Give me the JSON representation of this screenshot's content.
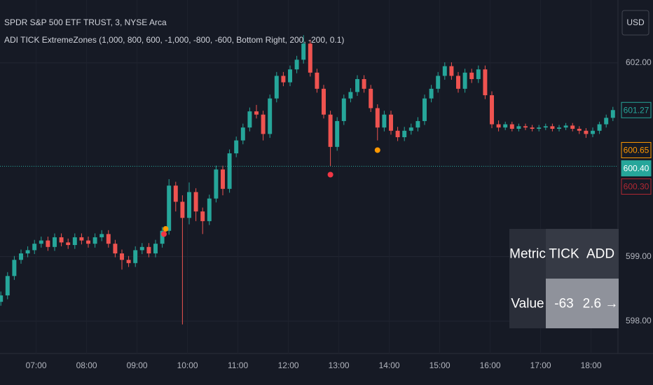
{
  "chart_data": {
    "type": "candlestick",
    "title": "SPDR S&P 500 ETF TRUST, 3, NYSE Arca",
    "indicator": "ADI TICK ExtremeZones (1,000, 800, 600, -1,000, -800, -600, Bottom Right, 200, -200, 0.1)",
    "currency": "USD",
    "up_color": "#26a69a",
    "down_color": "#ef5350",
    "grid": true,
    "xlim": [
      377,
      1112
    ],
    "ylim": [
      597.5,
      602.975
    ],
    "xticks": [
      {
        "value": 420,
        "label": "07:00"
      },
      {
        "value": 480,
        "label": "08:00"
      },
      {
        "value": 540,
        "label": "09:00"
      },
      {
        "value": 600,
        "label": "10:00"
      },
      {
        "value": 660,
        "label": "11:00"
      },
      {
        "value": 720,
        "label": "12:00"
      },
      {
        "value": 780,
        "label": "13:00"
      },
      {
        "value": 840,
        "label": "14:00"
      },
      {
        "value": 900,
        "label": "15:00"
      },
      {
        "value": 960,
        "label": "16:00"
      },
      {
        "value": 1020,
        "label": "17:00"
      },
      {
        "value": 1080,
        "label": "18:00"
      }
    ],
    "yticks": [
      {
        "value": 598,
        "label": "598.00"
      },
      {
        "value": 599,
        "label": "599.00"
      },
      {
        "value": 602,
        "label": "602.00"
      }
    ],
    "x": [
      378,
      386,
      394,
      402,
      410,
      418,
      426,
      434,
      442,
      450,
      458,
      466,
      474,
      482,
      490,
      498,
      506,
      514,
      522,
      530,
      538,
      546,
      554,
      562,
      570,
      578,
      586,
      594,
      602,
      610,
      618,
      626,
      634,
      642,
      650,
      658,
      666,
      674,
      682,
      690,
      698,
      706,
      714,
      722,
      730,
      738,
      746,
      754,
      762,
      770,
      778,
      786,
      794,
      802,
      810,
      818,
      826,
      834,
      842,
      850,
      858,
      866,
      874,
      882,
      890,
      898,
      906,
      914,
      922,
      930,
      938,
      946,
      954,
      962,
      970,
      978,
      986,
      994,
      1002,
      1010,
      1018,
      1026,
      1034,
      1042,
      1050,
      1058,
      1066,
      1074,
      1082,
      1090,
      1098,
      1106
    ],
    "open": [
      598.3,
      598.4,
      598.7,
      598.95,
      599.05,
      599.1,
      599.2,
      599.25,
      599.15,
      599.3,
      599.22,
      599.18,
      599.3,
      599.25,
      599.2,
      599.3,
      599.35,
      599.2,
      599.05,
      598.95,
      598.9,
      599.1,
      599.15,
      599.05,
      599.2,
      599.4,
      600.1,
      599.85,
      599.6,
      600.0,
      599.7,
      599.55,
      599.9,
      600.35,
      600.05,
      600.6,
      600.8,
      601.0,
      601.25,
      601.2,
      600.9,
      601.45,
      601.8,
      601.7,
      601.9,
      602.05,
      602.3,
      601.85,
      601.6,
      601.2,
      600.7,
      601.1,
      601.45,
      601.55,
      601.75,
      601.6,
      601.3,
      601.0,
      601.2,
      600.95,
      600.85,
      600.95,
      601.0,
      601.1,
      601.45,
      601.6,
      601.8,
      601.95,
      601.8,
      601.6,
      601.85,
      601.75,
      601.9,
      601.5,
      601.05,
      601.0,
      601.05,
      600.98,
      601.02,
      601.0,
      600.98,
      601.0,
      601.02,
      600.98,
      601.0,
      601.03,
      600.98,
      600.95,
      600.9,
      600.95,
      601.05,
      601.15
    ],
    "high": [
      598.46,
      598.76,
      599.01,
      599.11,
      599.16,
      599.26,
      599.31,
      599.31,
      599.36,
      599.36,
      599.28,
      599.36,
      599.36,
      599.31,
      599.36,
      599.41,
      599.41,
      599.26,
      599.11,
      599.01,
      599.16,
      599.21,
      599.21,
      599.26,
      599.46,
      600.2,
      600.16,
      599.95,
      600.15,
      600.06,
      599.76,
      599.96,
      600.41,
      600.41,
      600.66,
      600.86,
      601.06,
      601.31,
      601.35,
      601.26,
      601.51,
      601.86,
      601.86,
      601.96,
      602.11,
      602.43,
      602.36,
      601.91,
      601.66,
      601.26,
      601.16,
      601.51,
      601.61,
      601.81,
      601.81,
      601.66,
      601.36,
      601.26,
      601.26,
      601.01,
      601.01,
      601.06,
      601.16,
      601.51,
      601.66,
      601.86,
      602.01,
      602.01,
      601.86,
      601.91,
      601.91,
      601.96,
      601.96,
      601.56,
      601.11,
      601.09,
      601.09,
      601.06,
      601.06,
      601.04,
      601.04,
      601.06,
      601.06,
      601.04,
      601.07,
      601.07,
      601.02,
      600.99,
      601.0,
      601.09,
      601.2,
      601.32
    ],
    "low": [
      598.24,
      598.34,
      598.64,
      598.89,
      598.99,
      599.04,
      599.14,
      599.09,
      599.09,
      599.16,
      599.12,
      599.12,
      599.19,
      599.14,
      599.14,
      599.24,
      599.14,
      598.99,
      598.8,
      598.84,
      598.84,
      599.04,
      598.99,
      598.99,
      599.14,
      599.34,
      599.7,
      597.95,
      599.5,
      599.55,
      599.35,
      599.49,
      599.84,
      599.95,
      599.99,
      600.54,
      600.74,
      600.94,
      601.14,
      600.8,
      600.84,
      601.39,
      601.64,
      601.64,
      601.84,
      601.99,
      601.79,
      601.54,
      601.14,
      600.4,
      600.64,
      601.04,
      601.39,
      601.49,
      601.54,
      601.24,
      600.8,
      600.94,
      600.89,
      600.79,
      600.79,
      600.89,
      600.94,
      601.04,
      601.39,
      601.54,
      601.74,
      601.74,
      601.54,
      601.54,
      601.69,
      601.69,
      601.44,
      600.99,
      600.94,
      600.96,
      600.94,
      600.94,
      600.96,
      600.94,
      600.94,
      600.96,
      600.94,
      600.94,
      600.96,
      600.94,
      600.9,
      600.84,
      600.85,
      600.9,
      601.0,
      601.1
    ],
    "close": [
      598.4,
      598.7,
      598.95,
      599.05,
      599.1,
      599.2,
      599.25,
      599.15,
      599.3,
      599.22,
      599.18,
      599.3,
      599.25,
      599.2,
      599.3,
      599.35,
      599.2,
      599.05,
      598.95,
      598.9,
      599.1,
      599.15,
      599.05,
      599.2,
      599.4,
      600.1,
      599.85,
      599.6,
      600.0,
      599.7,
      599.55,
      599.9,
      600.35,
      600.05,
      600.6,
      600.8,
      601.0,
      601.25,
      601.2,
      600.9,
      601.45,
      601.8,
      601.7,
      601.9,
      602.05,
      602.3,
      601.85,
      601.6,
      601.2,
      600.7,
      601.1,
      601.45,
      601.55,
      601.75,
      601.6,
      601.3,
      601.0,
      601.2,
      600.95,
      600.85,
      600.95,
      601.0,
      601.1,
      601.45,
      601.6,
      601.8,
      601.95,
      601.8,
      601.6,
      601.85,
      601.75,
      601.9,
      601.5,
      601.05,
      601.0,
      601.05,
      600.98,
      601.02,
      601.0,
      600.98,
      601.0,
      601.02,
      600.98,
      601.0,
      601.03,
      600.98,
      600.95,
      600.9,
      600.95,
      601.05,
      601.15,
      601.27
    ],
    "markers": [
      {
        "x": 572,
        "y": 599.35,
        "color": "#f23645"
      },
      {
        "x": 574,
        "y": 599.43,
        "color": "#ff9800"
      },
      {
        "x": 770,
        "y": 600.27,
        "color": "#f23645"
      },
      {
        "x": 826,
        "y": 600.65,
        "color": "#ff9800"
      }
    ],
    "price_labels": [
      {
        "value": 601.27,
        "label": "601.27",
        "color": "#26a69a",
        "filled": false
      },
      {
        "value": 600.65,
        "label": "600.65",
        "color": "#ff9800",
        "filled": false
      },
      {
        "value": 600.4,
        "label": "600.40",
        "color": "#26a69a",
        "filled": true
      },
      {
        "value": 600.3,
        "label": "600.30",
        "color": "#b22833",
        "filled": false
      }
    ],
    "table": {
      "rows": [
        [
          "Metric",
          "TICK",
          "ADD"
        ],
        [
          "Value",
          -63,
          "2.6 →"
        ]
      ]
    }
  }
}
